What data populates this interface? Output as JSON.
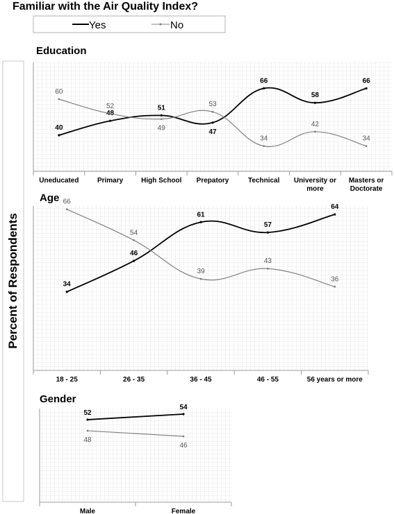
{
  "title": "Familiar with the Air Quality Index?",
  "legend": [
    {
      "label": "Yes",
      "color": "#000000"
    },
    {
      "label": "No",
      "color": "#808080"
    }
  ],
  "ylabel": "Percent of Respondents",
  "chart_data": [
    {
      "type": "line",
      "title": "Education",
      "categories": [
        [
          "Uneducated"
        ],
        [
          "Primary"
        ],
        [
          "High School"
        ],
        [
          "Prepatory"
        ],
        [
          "Technical"
        ],
        [
          "University or",
          "more"
        ],
        [
          "Masters or",
          "Doctorate"
        ]
      ],
      "series": [
        {
          "name": "Yes",
          "values": [
            40,
            48,
            51,
            47,
            66,
            58,
            66
          ]
        },
        {
          "name": "No",
          "values": [
            60,
            52,
            49,
            53,
            34,
            42,
            34
          ]
        }
      ],
      "grid": true
    },
    {
      "type": "line",
      "title": "Age",
      "categories": [
        [
          "18 - 25"
        ],
        [
          "26 - 35"
        ],
        [
          "36 - 45"
        ],
        [
          "46 - 55"
        ],
        [
          "56 years or more"
        ]
      ],
      "series": [
        {
          "name": "Yes",
          "values": [
            34,
            46,
            61,
            57,
            64
          ]
        },
        {
          "name": "No",
          "values": [
            66,
            54,
            39,
            43,
            36
          ]
        }
      ],
      "grid": true
    },
    {
      "type": "line",
      "title": "Gender",
      "categories": [
        [
          "Male"
        ],
        [
          "Female"
        ]
      ],
      "series": [
        {
          "name": "Yes",
          "values": [
            52,
            54
          ]
        },
        {
          "name": "No",
          "values": [
            48,
            46
          ]
        }
      ],
      "grid": true
    }
  ]
}
